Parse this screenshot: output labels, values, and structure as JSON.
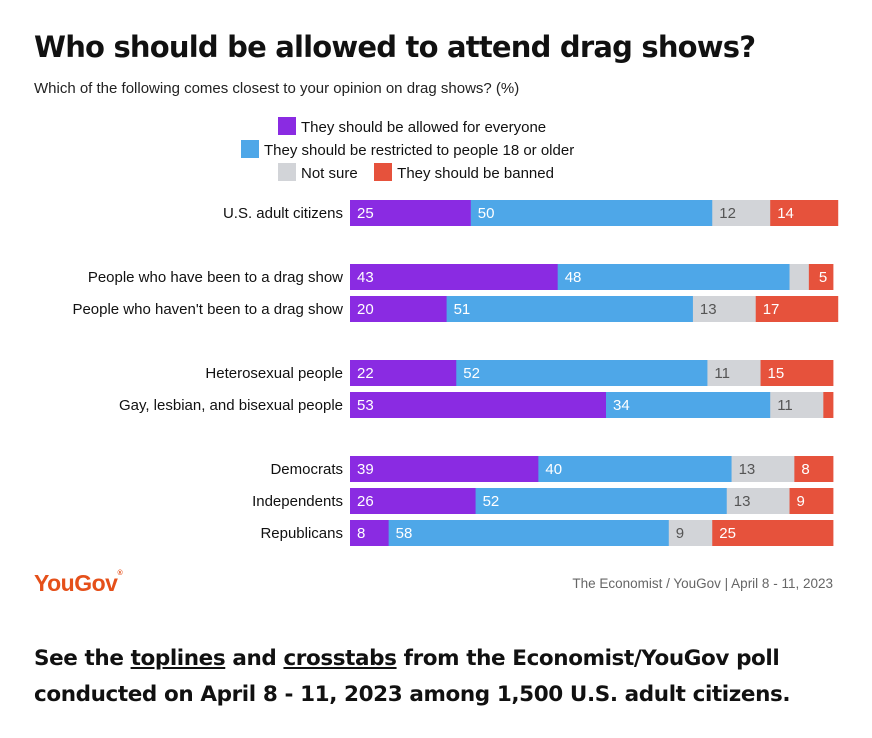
{
  "colors": {
    "allowed": "#8a2be2",
    "restricted": "#4ea7e8",
    "not_sure": "#d2d4d8",
    "banned": "#e6523c",
    "brand": "#e5501a"
  },
  "chart_data": {
    "type": "bar",
    "orientation": "horizontal",
    "stacked": true,
    "title": "Who should be allowed to attend drag shows?",
    "subtitle": "Which of the following comes closest to your opinion on drag shows? (%)",
    "legend_placement": "top-center",
    "xlim": [
      0,
      100
    ],
    "categories": [
      "U.S. adult citizens",
      "People who have been to a drag show",
      "People who haven't been to a drag show",
      "Heterosexual people",
      "Gay, lesbian, and bisexual people",
      "Democrats",
      "Independents",
      "Republicans"
    ],
    "series": [
      {
        "name": "They should be allowed for everyone",
        "color_key": "allowed",
        "values": [
          25,
          43,
          20,
          22,
          53,
          39,
          26,
          8
        ],
        "shown_labels": [
          "25",
          "43",
          "20",
          "22",
          "53",
          "39",
          "26",
          "8"
        ]
      },
      {
        "name": "They should be restricted to people 18 or older",
        "color_key": "restricted",
        "values": [
          50,
          48,
          51,
          52,
          34,
          40,
          52,
          58
        ],
        "shown_labels": [
          "50",
          "48",
          "51",
          "52",
          "34",
          "40",
          "52",
          "58"
        ]
      },
      {
        "name": "Not sure",
        "color_key": "not_sure",
        "values": [
          12,
          4,
          13,
          11,
          11,
          13,
          13,
          9
        ],
        "shown_labels": [
          "12",
          "",
          "13",
          "11",
          "11",
          "13",
          "13",
          "9"
        ]
      },
      {
        "name": "They should be banned",
        "color_key": "banned",
        "values": [
          14,
          5,
          17,
          15,
          2,
          8,
          9,
          25
        ],
        "shown_labels": [
          "14",
          "5",
          "17",
          "15",
          "",
          "8",
          "9",
          "25"
        ]
      }
    ]
  },
  "legend": {
    "allowed": "They should be allowed for everyone",
    "restricted": "They should be restricted to people 18 or older",
    "not_sure": "Not sure",
    "banned": "They should be banned"
  },
  "footer": {
    "brand": "YouGov",
    "brand_mark": "®",
    "source": "The Economist / YouGov | April 8 - 11, 2023",
    "pre": "See the ",
    "toplines": "toplines",
    "mid": " and ",
    "crosstabs": "crosstabs",
    "post": " from the Economist/YouGov poll conducted on April 8 - 11, 2023 among 1,500 U.S. adult citizens."
  }
}
